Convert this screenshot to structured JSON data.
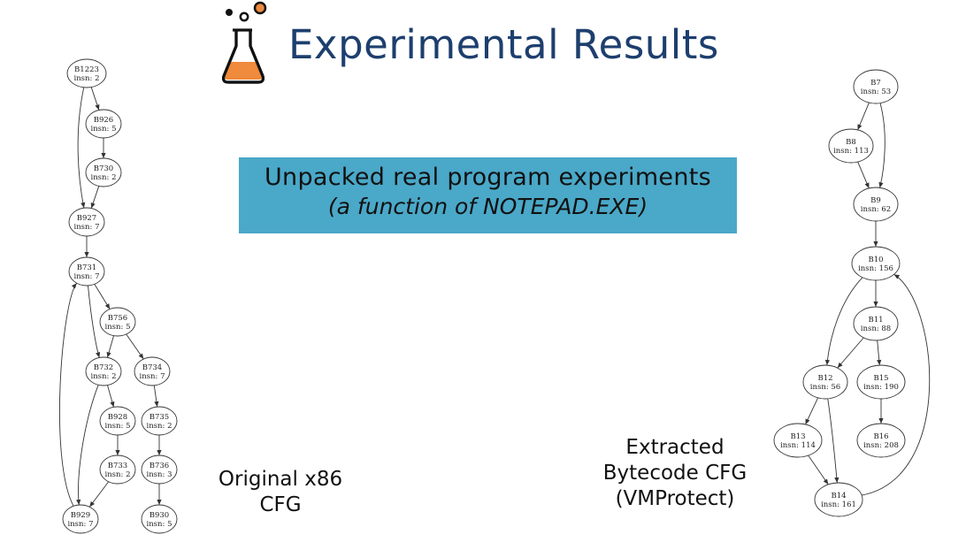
{
  "slide": {
    "title": "Experimental Results",
    "banner_line1": "Unpacked real program experiments",
    "banner_line2": "(a function of NOTEPAD.EXE)",
    "caption_left": [
      "Original x86",
      "CFG"
    ],
    "caption_right": [
      "Extracted",
      "Bytecode CFG",
      "(VMProtect)"
    ],
    "colors": {
      "title": "#1d3f6e",
      "banner": "#4aa8c8",
      "flask_liquid": "#f08a3c"
    },
    "icon": "flask-icon"
  },
  "graph_left": {
    "nodes": [
      {
        "id": "B1223",
        "label": "B1223",
        "insn": "insn: 2"
      },
      {
        "id": "B926",
        "label": "B926",
        "insn": "insn: 5"
      },
      {
        "id": "B730",
        "label": "B730",
        "insn": "insn: 2"
      },
      {
        "id": "B927",
        "label": "B927",
        "insn": "insn: 7"
      },
      {
        "id": "B731",
        "label": "B731",
        "insn": "insn: 7"
      },
      {
        "id": "B756",
        "label": "B756",
        "insn": "insn: 5"
      },
      {
        "id": "B732",
        "label": "B732",
        "insn": "insn: 2"
      },
      {
        "id": "B734",
        "label": "B734",
        "insn": "insn: 7"
      },
      {
        "id": "B928",
        "label": "B928",
        "insn": "insn: 5"
      },
      {
        "id": "B735",
        "label": "B735",
        "insn": "insn: 2"
      },
      {
        "id": "B733",
        "label": "B733",
        "insn": "insn: 2"
      },
      {
        "id": "B736",
        "label": "B736",
        "insn": "insn: 3"
      },
      {
        "id": "B929",
        "label": "B929",
        "insn": "insn: 7"
      },
      {
        "id": "B930",
        "label": "B930",
        "insn": "insn: 5"
      }
    ],
    "edges": [
      [
        "B1223",
        "B926"
      ],
      [
        "B926",
        "B730"
      ],
      [
        "B730",
        "B927"
      ],
      [
        "B1223",
        "B927"
      ],
      [
        "B927",
        "B731"
      ],
      [
        "B731",
        "B756"
      ],
      [
        "B731",
        "B732"
      ],
      [
        "B756",
        "B732"
      ],
      [
        "B756",
        "B734"
      ],
      [
        "B732",
        "B928"
      ],
      [
        "B928",
        "B733"
      ],
      [
        "B733",
        "B929"
      ],
      [
        "B732",
        "B929"
      ],
      [
        "B929",
        "B731"
      ],
      [
        "B734",
        "B735"
      ],
      [
        "B735",
        "B736"
      ],
      [
        "B736",
        "B930"
      ]
    ]
  },
  "graph_right": {
    "nodes": [
      {
        "id": "B7",
        "label": "B7",
        "insn": "insn: 53"
      },
      {
        "id": "B8",
        "label": "B8",
        "insn": "insn: 113"
      },
      {
        "id": "B9",
        "label": "B9",
        "insn": "insn: 62"
      },
      {
        "id": "B10",
        "label": "B10",
        "insn": "insn: 156"
      },
      {
        "id": "B11",
        "label": "B11",
        "insn": "insn: 88"
      },
      {
        "id": "B12",
        "label": "B12",
        "insn": "insn: 56"
      },
      {
        "id": "B15",
        "label": "B15",
        "insn": "insn: 190"
      },
      {
        "id": "B13",
        "label": "B13",
        "insn": "insn: 114"
      },
      {
        "id": "B16",
        "label": "B16",
        "insn": "insn: 208"
      },
      {
        "id": "B14",
        "label": "B14",
        "insn": "insn: 161"
      }
    ],
    "edges": [
      [
        "B7",
        "B8"
      ],
      [
        "B7",
        "B9"
      ],
      [
        "B8",
        "B9"
      ],
      [
        "B9",
        "B10"
      ],
      [
        "B10",
        "B11"
      ],
      [
        "B10",
        "B12"
      ],
      [
        "B11",
        "B12"
      ],
      [
        "B11",
        "B15"
      ],
      [
        "B15",
        "B16"
      ],
      [
        "B12",
        "B13"
      ],
      [
        "B12",
        "B14"
      ],
      [
        "B13",
        "B14"
      ],
      [
        "B14",
        "B10"
      ]
    ]
  }
}
